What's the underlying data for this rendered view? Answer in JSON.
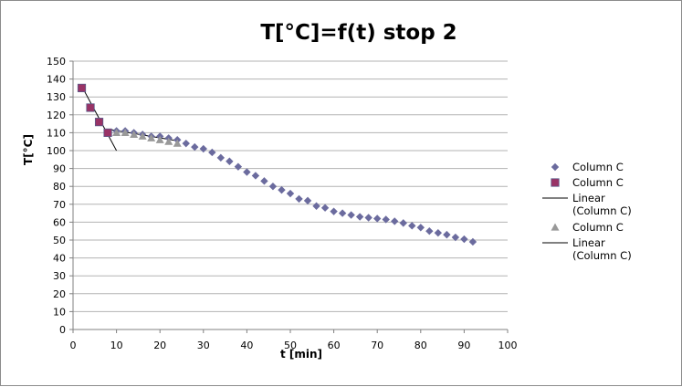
{
  "chart_data": {
    "type": "scatter",
    "title": "T[°C]=f(t) stop 2",
    "xlabel": "t [min]",
    "ylabel": "T[°C]",
    "xlim": [
      0,
      100
    ],
    "ylim": [
      0,
      150
    ],
    "x_ticks": [
      0,
      10,
      20,
      30,
      40,
      50,
      60,
      70,
      80,
      90,
      100
    ],
    "y_ticks": [
      0,
      10,
      20,
      30,
      40,
      50,
      60,
      70,
      80,
      90,
      100,
      110,
      120,
      130,
      140,
      150
    ],
    "grid": "horizontal",
    "legend_position": "right",
    "series": [
      {
        "name": "Column C",
        "marker": "diamond",
        "color": "#6b6b9e",
        "x": [
          2,
          4,
          6,
          8,
          10,
          12,
          14,
          16,
          18,
          20,
          22,
          24,
          26,
          28,
          30,
          32,
          34,
          36,
          38,
          40,
          42,
          44,
          46,
          48,
          50,
          52,
          54,
          56,
          58,
          60,
          62,
          64,
          66,
          68,
          70,
          72,
          74,
          76,
          78,
          80,
          82,
          84,
          86,
          88,
          90,
          92
        ],
        "y": [
          135,
          124,
          116,
          110,
          111,
          111,
          110,
          109,
          108,
          108,
          107,
          106,
          104,
          102,
          101,
          99,
          96,
          94,
          91,
          88,
          86,
          83,
          80,
          78,
          76,
          73,
          72,
          69,
          68,
          66,
          65,
          64,
          63,
          62.5,
          62,
          61.5,
          60.5,
          59.5,
          58,
          57,
          55,
          54,
          53,
          51.5,
          50.5,
          49
        ]
      },
      {
        "name": "Column C",
        "marker": "square",
        "color": "#993366",
        "x": [
          2,
          4,
          6,
          8
        ],
        "y": [
          135,
          124,
          116,
          110
        ]
      },
      {
        "name": "Linear (Column C)",
        "type": "line",
        "color": "#000000",
        "x": [
          2,
          10
        ],
        "y": [
          136,
          100
        ]
      },
      {
        "name": "Column C",
        "marker": "triangle",
        "color": "#999999",
        "x": [
          10,
          12,
          14,
          16,
          18,
          20,
          22,
          24
        ],
        "y": [
          110,
          110,
          109,
          108,
          107,
          106,
          105,
          104
        ]
      },
      {
        "name": "Linear (Column C)",
        "type": "line",
        "color": "#000000",
        "x": [
          8,
          24
        ],
        "y": [
          112,
          105.5
        ]
      }
    ]
  }
}
